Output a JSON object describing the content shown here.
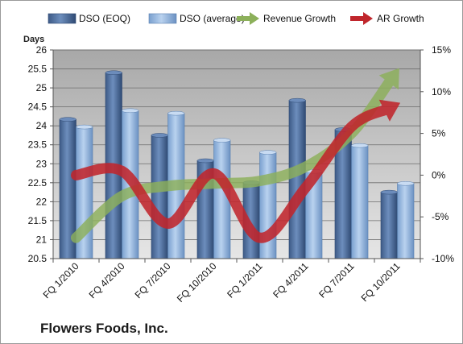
{
  "chart_data": {
    "type": "bar",
    "title": "",
    "company": "Flowers Foods, Inc.",
    "y_left_label": "Days",
    "categories": [
      "FQ 1/2010",
      "FQ 4/2010",
      "FQ 7/2010",
      "FQ 10/2010",
      "FQ 1/2011",
      "FQ 4/2011",
      "FQ 7/2011",
      "FQ 10/2011"
    ],
    "series": [
      {
        "name": "DSO (EOQ)",
        "kind": "bar",
        "axis": "left",
        "color": "#4f6e9c",
        "values": [
          24.17,
          25.4,
          23.75,
          23.08,
          22.5,
          24.67,
          23.9,
          22.25
        ]
      },
      {
        "name": "DSO (average)",
        "kind": "bar",
        "axis": "left",
        "color": "#8fb1dc",
        "values": [
          23.97,
          24.4,
          24.33,
          23.62,
          23.3,
          22.8,
          23.48,
          22.48
        ]
      },
      {
        "name": "Revenue Growth",
        "kind": "arrow-line",
        "axis": "right",
        "color": "#8cb05a",
        "values": [
          -7.5,
          -2.5,
          -1.3,
          -1.0,
          -0.7,
          1.0,
          5.0,
          12.5
        ]
      },
      {
        "name": "AR Growth",
        "kind": "arrow-line",
        "axis": "right",
        "color": "#c0262c",
        "values": [
          0.0,
          0.5,
          -5.8,
          0.2,
          -7.5,
          -1.5,
          5.8,
          8.5
        ]
      }
    ],
    "y_left": {
      "min": 20.5,
      "max": 26,
      "ticks": [
        "20.5",
        "21",
        "21.5",
        "22",
        "22.5",
        "23",
        "23.5",
        "24",
        "24.5",
        "25",
        "25.5",
        "26"
      ]
    },
    "y_right": {
      "min": -10,
      "max": 15,
      "ticks": [
        "-10%",
        "-5%",
        "0%",
        "5%",
        "10%",
        "15%"
      ]
    },
    "grid": true,
    "legend_position": "top"
  }
}
